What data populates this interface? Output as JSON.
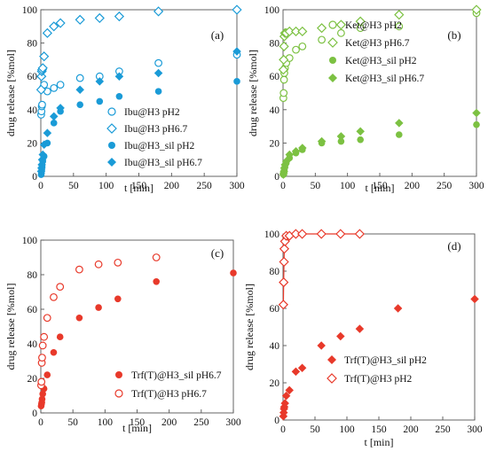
{
  "chart_data": [
    {
      "type": "scatter",
      "panel_label": "(a)",
      "xlabel": "t [min]",
      "ylabel": "drug release [%mol]",
      "xlim": [
        0,
        300
      ],
      "ylim": [
        0,
        100
      ],
      "xticks": [
        "0",
        "50",
        "100",
        "150",
        "200",
        "250",
        "300"
      ],
      "yticks": [
        "0",
        "20",
        "40",
        "60",
        "80",
        "100"
      ],
      "color": "#1a9bd7",
      "legend_placement": "center-right",
      "series": [
        {
          "name": "Ibu@H3 pH2",
          "marker": "circle-open",
          "x": [
            0.5,
            1,
            1.5,
            2,
            3,
            5,
            10,
            20,
            30,
            60,
            90,
            120,
            180,
            300
          ],
          "y": [
            37,
            39,
            42,
            43,
            53,
            55,
            51,
            53,
            55,
            59,
            60,
            63,
            68,
            73
          ]
        },
        {
          "name": "Ibu@H3 pH6.7",
          "marker": "diamond-open",
          "x": [
            0.5,
            1,
            1.5,
            2,
            3,
            5,
            10,
            20,
            30,
            60,
            90,
            120,
            180,
            300
          ],
          "y": [
            52,
            60,
            63,
            64,
            65,
            72,
            86,
            90,
            92,
            94,
            95,
            96,
            99,
            100
          ]
        },
        {
          "name": "Ibu@H3_sil pH2",
          "marker": "circle-filled",
          "x": [
            0.5,
            1,
            1.5,
            2,
            3,
            5,
            10,
            20,
            30,
            60,
            90,
            120,
            180,
            300
          ],
          "y": [
            1,
            2,
            4,
            6,
            9,
            12,
            20,
            32,
            39,
            43,
            45,
            48,
            51,
            57
          ]
        },
        {
          "name": "Ibu@H3_sil pH6.7",
          "marker": "diamond-filled",
          "x": [
            0.5,
            1,
            1.5,
            2,
            3,
            5,
            10,
            20,
            30,
            60,
            90,
            120,
            180,
            300
          ],
          "y": [
            3,
            5,
            7,
            10,
            13,
            19,
            26,
            36,
            41,
            52,
            57,
            60,
            62,
            75
          ]
        }
      ]
    },
    {
      "type": "scatter",
      "panel_label": "(b)",
      "xlabel": "t [min]",
      "ylabel": "drug release [%mol]",
      "xlim": [
        0,
        300
      ],
      "ylim": [
        0,
        100
      ],
      "xticks": [
        "0",
        "50",
        "100",
        "150",
        "200",
        "250",
        "300"
      ],
      "yticks": [
        "0",
        "20",
        "40",
        "60",
        "80",
        "100"
      ],
      "color": "#7cc142",
      "legend_placement": "upper-right",
      "series": [
        {
          "name": "Ket@H3 pH2",
          "marker": "circle-open",
          "x": [
            0.5,
            1,
            1.5,
            2,
            3,
            5,
            10,
            20,
            30,
            60,
            90,
            120,
            180,
            300
          ],
          "y": [
            47,
            50,
            58,
            62,
            65,
            68,
            71,
            76,
            78,
            82,
            86,
            89,
            90,
            98
          ]
        },
        {
          "name": "Ket@H3 pH6.7",
          "marker": "diamond-open",
          "x": [
            0.5,
            1,
            1.5,
            2,
            3,
            5,
            10,
            20,
            30,
            60,
            90,
            120,
            180,
            300
          ],
          "y": [
            64,
            70,
            78,
            84,
            86,
            86,
            87,
            87,
            87,
            89,
            91,
            93,
            97,
            100
          ]
        },
        {
          "name": "Ket@H3_sil pH2",
          "marker": "circle-filled",
          "x": [
            0.5,
            1,
            1.5,
            2,
            3,
            5,
            10,
            20,
            30,
            60,
            90,
            120,
            180,
            300
          ],
          "y": [
            1,
            2,
            3,
            4,
            6,
            8,
            11,
            14,
            16,
            20,
            21,
            22,
            25,
            31
          ]
        },
        {
          "name": "Ket@H3_sil pH6.7",
          "marker": "diamond-filled",
          "x": [
            0.5,
            1,
            1.5,
            2,
            3,
            5,
            10,
            20,
            30,
            60,
            90,
            120,
            180,
            300
          ],
          "y": [
            1,
            2,
            3,
            5,
            7,
            9,
            13,
            15,
            17,
            21,
            24,
            27,
            32,
            38
          ]
        }
      ]
    },
    {
      "type": "scatter",
      "panel_label": "(c)",
      "xlabel": "t [min]",
      "ylabel": "drug release [%mol]",
      "xlim": [
        0,
        300
      ],
      "ylim": [
        0,
        100
      ],
      "xticks": [
        "0",
        "50",
        "100",
        "150",
        "200",
        "250",
        "300"
      ],
      "yticks": [
        "0",
        "20",
        "40",
        "60",
        "80",
        "100"
      ],
      "color": "#e8392a",
      "legend_placement": "lower-right",
      "series": [
        {
          "name": "Trf(T)@H3_sil pH6.7",
          "marker": "circle-filled",
          "x": [
            0.5,
            1,
            1.5,
            2,
            3,
            5,
            10,
            20,
            30,
            60,
            90,
            120,
            180,
            300
          ],
          "y": [
            4,
            5,
            6,
            8,
            11,
            14,
            22,
            35,
            44,
            55,
            61,
            66,
            76,
            81
          ]
        },
        {
          "name": "Trf(T)@H3 pH6.7",
          "marker": "circle-open",
          "x": [
            0.5,
            1,
            1.5,
            2,
            3,
            5,
            10,
            20,
            30,
            60,
            90,
            120,
            180
          ],
          "y": [
            16,
            18,
            29,
            32,
            39,
            44,
            55,
            67,
            73,
            83,
            86,
            87,
            90
          ]
        }
      ]
    },
    {
      "type": "scatter",
      "panel_label": "(d)",
      "xlabel": "t [min]",
      "ylabel": "drug release [%mol]",
      "xlim": [
        0,
        300
      ],
      "ylim": [
        0,
        100
      ],
      "xticks": [
        "0",
        "50",
        "100",
        "150",
        "200",
        "250",
        "300"
      ],
      "yticks": [
        "0",
        "20",
        "40",
        "60",
        "80",
        "100"
      ],
      "color": "#e8392a",
      "legend_placement": "lower-right",
      "series": [
        {
          "name": "Trf(T)@H3_sil pH2",
          "marker": "diamond-filled",
          "x": [
            0.5,
            1,
            1.5,
            2,
            3,
            5,
            10,
            20,
            30,
            60,
            90,
            120,
            180,
            300
          ],
          "y": [
            2,
            4,
            6,
            7,
            9,
            13,
            16,
            26,
            28,
            40,
            45,
            49,
            60,
            65
          ]
        },
        {
          "name": "Trf(T)@H3 pH2",
          "marker": "diamond-open",
          "x": [
            0.5,
            1,
            1.5,
            2,
            3,
            5,
            10,
            20,
            30,
            60,
            90,
            120
          ],
          "y": [
            62,
            74,
            85,
            92,
            96,
            99,
            99,
            100,
            100,
            100,
            100,
            100
          ],
          "connected": true
        }
      ]
    }
  ]
}
